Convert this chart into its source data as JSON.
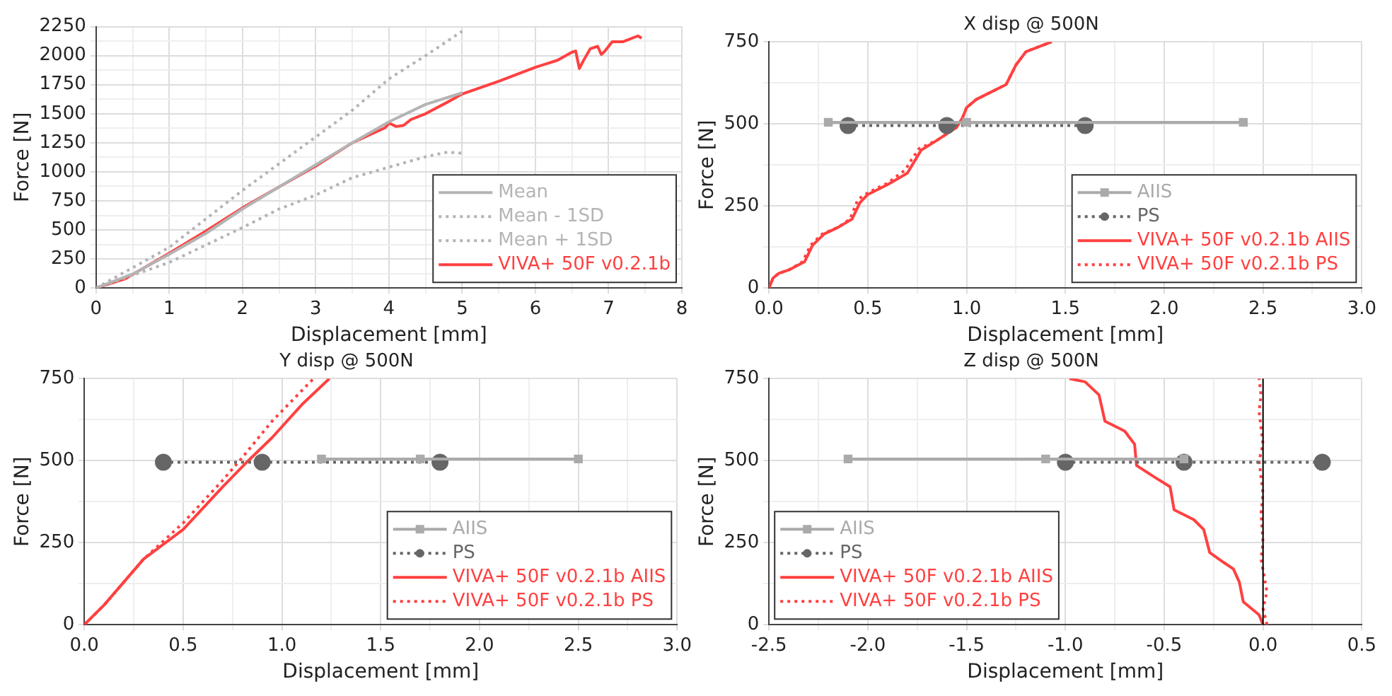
{
  "chart_data": [
    {
      "type": "line",
      "xlabel": "Displacement [mm]",
      "ylabel": "Force [N]",
      "xlim": [
        0,
        8
      ],
      "ylim": [
        0,
        2250
      ],
      "xticks": [
        0,
        {
          "value": 0.5,
          "label": null
        },
        1,
        {
          "value": 1.5,
          "label": null
        },
        2,
        {
          "value": 2.5,
          "label": null
        },
        3,
        {
          "value": 3.5,
          "label": null
        },
        4,
        {
          "value": 4.5,
          "label": null
        },
        5,
        {
          "value": 5.5,
          "label": null
        },
        6,
        {
          "value": 6.5,
          "label": null
        },
        7,
        {
          "value": 7.5,
          "label": null
        },
        8
      ],
      "yticks": [
        0,
        {
          "value": 125,
          "label": null
        },
        250,
        {
          "value": 375,
          "label": null
        },
        500,
        {
          "value": 625,
          "label": null
        },
        750,
        {
          "value": 875,
          "label": null
        },
        1000,
        {
          "value": 1125,
          "label": null
        },
        1250,
        {
          "value": 1375,
          "label": null
        },
        1500,
        {
          "value": 1625,
          "label": null
        },
        1750,
        {
          "value": 1875,
          "label": null
        },
        2000,
        {
          "value": 2125,
          "label": null
        },
        2250
      ],
      "grid": true,
      "legend": "bottom right",
      "series": [
        {
          "name": "Mean",
          "color": "#b4b4b4",
          "line_style": "solid",
          "marker": "none",
          "x": [
            0,
            0.5,
            1,
            1.5,
            2,
            2.5,
            3,
            3.5,
            4,
            4.5,
            5
          ],
          "values": [
            0,
            120,
            290,
            470,
            680,
            870,
            1060,
            1250,
            1430,
            1580,
            1680
          ]
        },
        {
          "name": "Mean - 1SD",
          "color": "#b4b4b4",
          "line_style": "dotted",
          "marker": "none",
          "x": [
            0,
            1,
            2,
            2.5,
            3,
            3.5,
            4,
            4.5,
            4.8,
            5
          ],
          "values": [
            0,
            220,
            520,
            680,
            800,
            950,
            1040,
            1130,
            1170,
            1160
          ]
        },
        {
          "name": "Mean + 1SD",
          "color": "#b4b4b4",
          "line_style": "dotted",
          "marker": "none",
          "x": [
            0,
            1,
            2,
            3,
            3.5,
            4,
            4.5,
            5
          ],
          "values": [
            0,
            350,
            840,
            1300,
            1530,
            1800,
            2000,
            2210
          ]
        },
        {
          "name": "VIVA+ 50F v0.2.1b",
          "color": "#ff4040",
          "line_style": "solid",
          "marker": "none",
          "x": [
            0,
            0.4,
            1,
            1.5,
            2,
            2.5,
            3,
            3.5,
            3.95,
            4,
            4.1,
            4.2,
            4.3,
            4.5,
            4.8,
            5,
            5.5,
            6,
            6.3,
            6.5,
            6.55,
            6.6,
            6.65,
            6.75,
            6.85,
            6.9,
            6.95,
            7.05,
            7.2,
            7.4,
            7.45
          ],
          "values": [
            0,
            80,
            300,
            490,
            690,
            870,
            1050,
            1250,
            1380,
            1420,
            1390,
            1400,
            1450,
            1500,
            1600,
            1670,
            1780,
            1900,
            1960,
            2030,
            2040,
            1890,
            1950,
            2060,
            2080,
            2010,
            2040,
            2120,
            2120,
            2170,
            2150
          ]
        }
      ]
    },
    {
      "type": "line",
      "title": "X disp @ 500N",
      "xlabel": "Displacement [mm]",
      "ylabel": "Force [N]",
      "xlim": [
        0,
        3
      ],
      "ylim": [
        0,
        750
      ],
      "xticks": [
        {
          "value": 0,
          "label": "0.0"
        },
        {
          "value": 0.25,
          "label": null
        },
        {
          "value": 0.5,
          "label": "0.5"
        },
        {
          "value": 0.75,
          "label": null
        },
        {
          "value": 1,
          "label": "1.0"
        },
        {
          "value": 1.25,
          "label": null
        },
        {
          "value": 1.5,
          "label": "1.5"
        },
        {
          "value": 1.75,
          "label": null
        },
        {
          "value": 2,
          "label": "2.0"
        },
        {
          "value": 2.25,
          "label": null
        },
        {
          "value": 2.5,
          "label": "2.5"
        },
        {
          "value": 2.75,
          "label": null
        },
        {
          "value": 3,
          "label": "3.0"
        }
      ],
      "yticks": [
        0,
        {
          "value": 125,
          "label": null
        },
        250,
        {
          "value": 375,
          "label": null
        },
        500,
        {
          "value": 625,
          "label": null
        },
        750
      ],
      "grid": true,
      "legend": "bottom right",
      "series": [
        {
          "name": "AIIS",
          "color": "#aaaaaa",
          "line_style": "solid",
          "marker": "square",
          "x": [
            0.3,
            1.0,
            2.4
          ],
          "values": [
            505,
            505,
            505
          ]
        },
        {
          "name": "PS",
          "color": "#666666",
          "line_style": "dotted",
          "marker": "circle",
          "x": [
            0.4,
            0.9,
            1.6
          ],
          "values": [
            495,
            495,
            495
          ]
        },
        {
          "name": "VIVA+ 50F v0.2.1b AIIS",
          "color": "#ff4040",
          "line_style": "solid",
          "marker": "none",
          "x": [
            0,
            0.02,
            0.05,
            0.1,
            0.18,
            0.22,
            0.28,
            0.35,
            0.42,
            0.46,
            0.5,
            0.6,
            0.7,
            0.73,
            0.77,
            0.85,
            0.95,
            0.98,
            1.0,
            1.05,
            1.2,
            1.25,
            1.3,
            1.43
          ],
          "values": [
            0,
            30,
            45,
            55,
            80,
            130,
            165,
            185,
            210,
            260,
            285,
            315,
            350,
            380,
            420,
            450,
            490,
            520,
            550,
            575,
            620,
            680,
            720,
            750
          ]
        },
        {
          "name": "VIVA+ 50F v0.2.1b PS",
          "color": "#ff4040",
          "line_style": "dotted",
          "marker": "none",
          "x": [
            0,
            0.02,
            0.05,
            0.1,
            0.17,
            0.21,
            0.27,
            0.35,
            0.41,
            0.45,
            0.5,
            0.6,
            0.69,
            0.72,
            0.76,
            0.85,
            0.95,
            0.98,
            1.0,
            1.05,
            1.2,
            1.25,
            1.3,
            1.43
          ],
          "values": [
            0,
            30,
            45,
            55,
            80,
            130,
            165,
            185,
            210,
            270,
            290,
            320,
            360,
            390,
            425,
            450,
            490,
            520,
            550,
            575,
            620,
            680,
            720,
            750
          ]
        }
      ]
    },
    {
      "type": "line",
      "title": "Y disp @ 500N",
      "xlabel": "Displacement [mm]",
      "ylabel": "Force [N]",
      "xlim": [
        0,
        3
      ],
      "ylim": [
        0,
        750
      ],
      "xticks": [
        {
          "value": 0,
          "label": "0.0"
        },
        {
          "value": 0.25,
          "label": null
        },
        {
          "value": 0.5,
          "label": "0.5"
        },
        {
          "value": 0.75,
          "label": null
        },
        {
          "value": 1,
          "label": "1.0"
        },
        {
          "value": 1.25,
          "label": null
        },
        {
          "value": 1.5,
          "label": "1.5"
        },
        {
          "value": 1.75,
          "label": null
        },
        {
          "value": 2,
          "label": "2.0"
        },
        {
          "value": 2.25,
          "label": null
        },
        {
          "value": 2.5,
          "label": "2.5"
        },
        {
          "value": 2.75,
          "label": null
        },
        {
          "value": 3,
          "label": "3.0"
        }
      ],
      "yticks": [
        0,
        {
          "value": 125,
          "label": null
        },
        250,
        {
          "value": 375,
          "label": null
        },
        500,
        {
          "value": 625,
          "label": null
        },
        750
      ],
      "grid": true,
      "legend": "bottom right",
      "series": [
        {
          "name": "AIIS",
          "color": "#aaaaaa",
          "line_style": "solid",
          "marker": "square",
          "x": [
            1.2,
            1.7,
            2.5
          ],
          "values": [
            505,
            505,
            505
          ]
        },
        {
          "name": "PS",
          "color": "#666666",
          "line_style": "dotted",
          "marker": "circle",
          "x": [
            0.4,
            0.9,
            1.8
          ],
          "values": [
            495,
            495,
            495
          ]
        },
        {
          "name": "VIVA+ 50F v0.2.1b AIIS",
          "color": "#ff4040",
          "line_style": "solid",
          "marker": "none",
          "x": [
            0,
            0.1,
            0.3,
            0.5,
            0.7,
            0.83,
            0.95,
            1.1,
            1.24
          ],
          "values": [
            0,
            60,
            200,
            290,
            420,
            500,
            570,
            670,
            750
          ]
        },
        {
          "name": "VIVA+ 50F v0.2.1b PS",
          "color": "#ff4040",
          "line_style": "dotted",
          "marker": "none",
          "x": [
            0,
            0.1,
            0.3,
            0.5,
            0.7,
            0.8,
            0.95,
            1.16
          ],
          "values": [
            0,
            60,
            200,
            310,
            440,
            510,
            620,
            750
          ]
        }
      ]
    },
    {
      "type": "line",
      "title": "Z disp @ 500N",
      "xlabel": "Displacement [mm]",
      "ylabel": "Force [N]",
      "xlim": [
        -2.5,
        0.5
      ],
      "ylim": [
        0,
        750
      ],
      "xticks": [
        {
          "value": -2.5,
          "label": "-2.5"
        },
        {
          "value": -2.25,
          "label": null
        },
        {
          "value": -2,
          "label": "-2.0"
        },
        {
          "value": -1.75,
          "label": null
        },
        {
          "value": -1.5,
          "label": "-1.5"
        },
        {
          "value": -1.25,
          "label": null
        },
        {
          "value": -1,
          "label": "-1.0"
        },
        {
          "value": -0.75,
          "label": null
        },
        {
          "value": -0.5,
          "label": "-0.5"
        },
        {
          "value": -0.25,
          "label": null
        },
        {
          "value": 0,
          "label": "0.0"
        },
        {
          "value": 0.25,
          "label": null
        },
        {
          "value": 0.5,
          "label": "0.5"
        }
      ],
      "yticks": [
        0,
        {
          "value": 125,
          "label": null
        },
        250,
        {
          "value": 375,
          "label": null
        },
        500,
        {
          "value": 625,
          "label": null
        },
        750
      ],
      "grid": true,
      "legend": "bottom left",
      "ref_lines": [
        {
          "axis": "x",
          "value": 0,
          "color": "#000000"
        }
      ],
      "series": [
        {
          "name": "AIIS",
          "color": "#aaaaaa",
          "line_style": "solid",
          "marker": "square",
          "x": [
            -2.1,
            -1.1,
            -0.4
          ],
          "values": [
            505,
            505,
            505
          ]
        },
        {
          "name": "PS",
          "color": "#666666",
          "line_style": "dotted",
          "marker": "circle",
          "x": [
            -1.0,
            -0.4,
            0.3
          ],
          "values": [
            495,
            495,
            495
          ]
        },
        {
          "name": "VIVA+ 50F v0.2.1b AIIS",
          "color": "#ff4040",
          "line_style": "solid",
          "marker": "none",
          "x": [
            0,
            -0.02,
            -0.1,
            -0.12,
            -0.15,
            -0.2,
            -0.27,
            -0.3,
            -0.35,
            -0.45,
            -0.47,
            -0.55,
            -0.64,
            -0.65,
            -0.7,
            -0.8,
            -0.83,
            -0.9,
            -0.98
          ],
          "values": [
            0,
            30,
            70,
            130,
            170,
            190,
            220,
            290,
            320,
            350,
            420,
            450,
            485,
            550,
            590,
            620,
            700,
            740,
            750
          ]
        },
        {
          "name": "VIVA+ 50F v0.2.1b PS",
          "color": "#ff4040",
          "line_style": "dotted",
          "marker": "none",
          "x": [
            0.02,
            0,
            0.02,
            -0.01,
            0,
            -0.01,
            0,
            -0.02,
            0,
            -0.02,
            -0.01,
            -0.02
          ],
          "values": [
            0,
            50,
            100,
            200,
            250,
            340,
            400,
            500,
            550,
            650,
            700,
            750
          ]
        }
      ]
    }
  ]
}
